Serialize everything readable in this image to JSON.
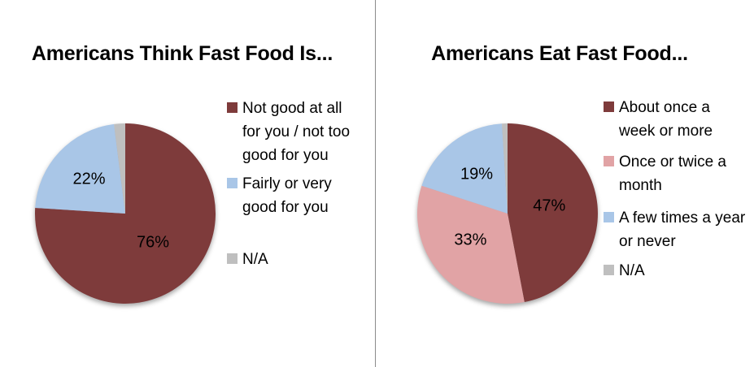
{
  "chart_data": [
    {
      "type": "pie",
      "title": "Americans Think Fast Food Is...",
      "categories": [
        "Not good at all for you / not too good for you",
        "Fairly or very good for you",
        "N/A"
      ],
      "values": [
        76,
        22,
        2
      ],
      "data_labels": [
        "76%",
        "22%",
        ""
      ],
      "colors": [
        "#7E3B3B",
        "#A9C6E7",
        "#BFBFBF"
      ],
      "legend_lines": [
        [
          "Not good at all",
          "for you / not too",
          "good for you"
        ],
        [
          "Fairly or very",
          "good for you"
        ],
        [
          "N/A"
        ]
      ],
      "legend_position": "right",
      "start_angle_deg": 0,
      "direction": "clockwise"
    },
    {
      "type": "pie",
      "title": "Americans Eat Fast Food...",
      "categories": [
        "About once a week or more",
        "Once or twice a month",
        "A few times a year or never",
        "N/A"
      ],
      "values": [
        47,
        33,
        19,
        1
      ],
      "data_labels": [
        "47%",
        "33%",
        "19%",
        ""
      ],
      "colors": [
        "#7E3B3B",
        "#E1A3A5",
        "#A9C6E7",
        "#BFBFBF"
      ],
      "legend_lines": [
        [
          "About once a",
          "week or more"
        ],
        [
          "Once or twice a",
          "month"
        ],
        [
          "A few times a year",
          "or never"
        ],
        [
          "N/A"
        ]
      ],
      "legend_position": "right",
      "start_angle_deg": 0,
      "direction": "clockwise"
    }
  ]
}
